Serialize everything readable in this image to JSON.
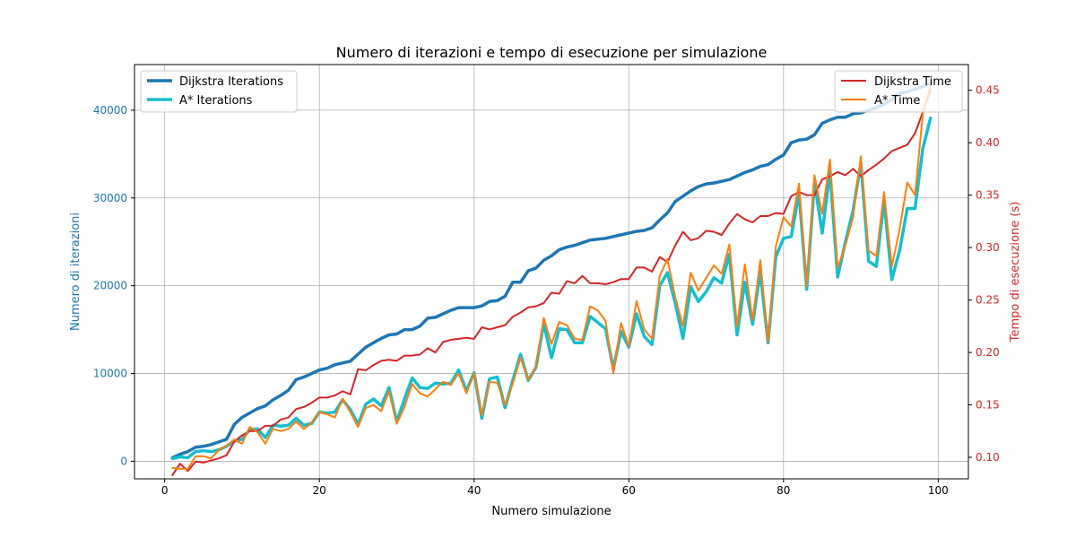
{
  "chart_data": {
    "type": "line",
    "title": "Numero di iterazioni e tempo di esecuzione per simulazione",
    "xlabel": "Numero simulazione",
    "ylabel_left": "Numero di iterazioni",
    "ylabel_right": "Tempo di esecuzione (s)",
    "xlim": [
      -3.9,
      103.9
    ],
    "ylim_left": [
      -2000,
      45200
    ],
    "ylim_right": [
      0.0795,
      0.4745
    ],
    "x_ticks": [
      0,
      20,
      40,
      60,
      80,
      100
    ],
    "y_left_ticks": [
      0,
      10000,
      20000,
      30000,
      40000
    ],
    "y_right_ticks": [
      0.1,
      0.15,
      0.2,
      0.25,
      0.3,
      0.35,
      0.4,
      0.45
    ],
    "grid": true,
    "legend_left": "top-left",
    "legend_right": "top-right",
    "colors": {
      "left_axis": "#1f77b4",
      "right_axis": "#d62728"
    },
    "series": [
      {
        "name": "Dijkstra Iterations",
        "axis": "left",
        "color": "#1f77b4",
        "x": [
          1,
          2,
          3,
          4,
          5,
          6,
          7,
          8,
          9,
          10,
          11,
          12,
          13,
          14,
          15,
          16,
          17,
          18,
          19,
          20,
          21,
          22,
          23,
          24,
          25,
          26,
          27,
          28,
          29,
          30,
          31,
          32,
          33,
          34,
          35,
          36,
          37,
          38,
          39,
          40,
          41,
          42,
          43,
          44,
          45,
          46,
          47,
          48,
          49,
          50,
          51,
          52,
          53,
          54,
          55,
          56,
          57,
          58,
          59,
          60,
          61,
          62,
          63,
          64,
          65,
          66,
          67,
          68,
          69,
          70,
          71,
          72,
          73,
          74,
          75,
          76,
          77,
          78,
          79,
          80,
          81,
          82,
          83,
          84,
          85,
          86,
          87,
          88,
          89,
          90,
          91,
          92,
          93,
          94,
          95,
          96,
          97,
          98,
          99
        ],
        "values": [
          400,
          800,
          1100,
          1600,
          1700,
          1900,
          2200,
          2500,
          4200,
          5000,
          5500,
          6000,
          6300,
          7000,
          7500,
          8100,
          9300,
          9600,
          10000,
          10400,
          10600,
          11000,
          11200,
          11400,
          12200,
          13000,
          13500,
          14000,
          14400,
          14500,
          15000,
          15000,
          15400,
          16300,
          16400,
          16800,
          17200,
          17500,
          17500,
          17500,
          17700,
          18200,
          18300,
          18800,
          20400,
          20400,
          21700,
          22000,
          22900,
          23400,
          24100,
          24400,
          24600,
          24900,
          25200,
          25300,
          25400,
          25600,
          25800,
          26000,
          26200,
          26300,
          26600,
          27500,
          28300,
          29600,
          30200,
          30800,
          31300,
          31600,
          31700,
          31900,
          32100,
          32500,
          32900,
          33200,
          33600,
          33800,
          34400,
          34900,
          36300,
          36600,
          36700,
          37200,
          38500,
          38900,
          39200,
          39200,
          39600,
          39700,
          40000,
          40300,
          40700,
          41200,
          41900,
          42100,
          42400,
          42700,
          43000
        ]
      },
      {
        "name": "A* Iterations",
        "axis": "left",
        "color": "#17becf",
        "x": [
          1,
          2,
          3,
          4,
          5,
          6,
          7,
          8,
          9,
          10,
          11,
          12,
          13,
          14,
          15,
          16,
          17,
          18,
          19,
          20,
          21,
          22,
          23,
          24,
          25,
          26,
          27,
          28,
          29,
          30,
          31,
          32,
          33,
          34,
          35,
          36,
          37,
          38,
          39,
          40,
          41,
          42,
          43,
          44,
          45,
          46,
          47,
          48,
          49,
          50,
          51,
          52,
          53,
          54,
          55,
          56,
          57,
          58,
          59,
          60,
          61,
          62,
          63,
          64,
          65,
          66,
          67,
          68,
          69,
          70,
          71,
          72,
          73,
          74,
          75,
          76,
          77,
          78,
          79,
          80,
          81,
          82,
          83,
          84,
          85,
          86,
          87,
          88,
          89,
          90,
          91,
          92,
          93,
          94,
          95,
          96,
          97,
          98,
          99
        ],
        "values": [
          300,
          500,
          400,
          1100,
          1200,
          1100,
          1300,
          1700,
          2300,
          2500,
          3600,
          3700,
          2700,
          4100,
          4000,
          4100,
          4900,
          4100,
          4300,
          5600,
          5500,
          5600,
          7000,
          5900,
          4200,
          6500,
          7100,
          6300,
          8400,
          4500,
          7100,
          9500,
          8400,
          8300,
          8900,
          8800,
          8900,
          10400,
          8000,
          10100,
          4900,
          9400,
          9600,
          6100,
          9200,
          12200,
          9200,
          10700,
          15700,
          11800,
          15100,
          15000,
          13500,
          13500,
          16500,
          15800,
          15100,
          10500,
          14800,
          13000,
          16800,
          14200,
          13300,
          20000,
          21500,
          18000,
          14000,
          19900,
          18200,
          19300,
          20900,
          20300,
          23600,
          14400,
          20400,
          15600,
          21600,
          13500,
          23300,
          25400,
          25600,
          30600,
          19600,
          31800,
          26000,
          33000,
          21000,
          25000,
          28600,
          34000,
          22800,
          22200,
          29700,
          20700,
          24000,
          28800,
          28800,
          35600,
          39100
        ]
      },
      {
        "name": "Dijkstra Time",
        "axis": "right",
        "color": "#d62728",
        "x": [
          1,
          2,
          3,
          4,
          5,
          6,
          7,
          8,
          9,
          10,
          11,
          12,
          13,
          14,
          15,
          16,
          17,
          18,
          19,
          20,
          21,
          22,
          23,
          24,
          25,
          26,
          27,
          28,
          29,
          30,
          31,
          32,
          33,
          34,
          35,
          36,
          37,
          38,
          39,
          40,
          41,
          42,
          43,
          44,
          45,
          46,
          47,
          48,
          49,
          50,
          51,
          52,
          53,
          54,
          55,
          56,
          57,
          58,
          59,
          60,
          61,
          62,
          63,
          64,
          65,
          66,
          67,
          68,
          69,
          70,
          71,
          72,
          73,
          74,
          75,
          76,
          77,
          78,
          79,
          80,
          81,
          82,
          83,
          84,
          85,
          86,
          87,
          88,
          89,
          90,
          91,
          92,
          93,
          94,
          95,
          96,
          97,
          98,
          99
        ],
        "values": [
          0.083,
          0.094,
          0.087,
          0.096,
          0.095,
          0.097,
          0.099,
          0.102,
          0.115,
          0.121,
          0.125,
          0.125,
          0.13,
          0.13,
          0.136,
          0.138,
          0.146,
          0.148,
          0.152,
          0.157,
          0.157,
          0.159,
          0.163,
          0.16,
          0.184,
          0.183,
          0.188,
          0.192,
          0.193,
          0.192,
          0.197,
          0.197,
          0.198,
          0.204,
          0.2,
          0.21,
          0.212,
          0.213,
          0.214,
          0.213,
          0.224,
          0.222,
          0.224,
          0.226,
          0.234,
          0.238,
          0.243,
          0.244,
          0.247,
          0.257,
          0.256,
          0.268,
          0.266,
          0.273,
          0.266,
          0.266,
          0.265,
          0.267,
          0.27,
          0.27,
          0.281,
          0.281,
          0.277,
          0.291,
          0.286,
          0.302,
          0.315,
          0.307,
          0.309,
          0.316,
          0.315,
          0.312,
          0.323,
          0.332,
          0.327,
          0.324,
          0.33,
          0.33,
          0.333,
          0.332,
          0.349,
          0.353,
          0.35,
          0.35,
          0.365,
          0.368,
          0.372,
          0.369,
          0.375,
          0.368,
          0.374,
          0.379,
          0.385,
          0.392,
          0.395,
          0.398,
          0.409,
          0.429,
          0.45
        ]
      },
      {
        "name": "A* Time",
        "axis": "right",
        "color": "#ff7f0e",
        "x": [
          1,
          2,
          3,
          4,
          5,
          6,
          7,
          8,
          9,
          10,
          11,
          12,
          13,
          14,
          15,
          16,
          17,
          18,
          19,
          20,
          21,
          22,
          23,
          24,
          25,
          26,
          27,
          28,
          29,
          30,
          31,
          32,
          33,
          34,
          35,
          36,
          37,
          38,
          39,
          40,
          41,
          42,
          43,
          44,
          45,
          46,
          47,
          48,
          49,
          50,
          51,
          52,
          53,
          54,
          55,
          56,
          57,
          58,
          59,
          60,
          61,
          62,
          63,
          64,
          65,
          66,
          67,
          68,
          69,
          70,
          71,
          72,
          73,
          74,
          75,
          76,
          77,
          78,
          79,
          80,
          81,
          82,
          83,
          84,
          85,
          86,
          87,
          88,
          89,
          90,
          91,
          92,
          93,
          94,
          95,
          96,
          97,
          98,
          99
        ],
        "values": [
          0.09,
          0.089,
          0.089,
          0.101,
          0.101,
          0.099,
          0.107,
          0.111,
          0.117,
          0.113,
          0.129,
          0.124,
          0.113,
          0.127,
          0.125,
          0.127,
          0.134,
          0.127,
          0.133,
          0.143,
          0.141,
          0.138,
          0.156,
          0.143,
          0.129,
          0.147,
          0.15,
          0.144,
          0.163,
          0.132,
          0.148,
          0.17,
          0.161,
          0.158,
          0.165,
          0.172,
          0.169,
          0.18,
          0.161,
          0.18,
          0.14,
          0.172,
          0.171,
          0.15,
          0.17,
          0.195,
          0.174,
          0.186,
          0.233,
          0.208,
          0.229,
          0.226,
          0.213,
          0.212,
          0.244,
          0.24,
          0.23,
          0.18,
          0.228,
          0.206,
          0.249,
          0.222,
          0.213,
          0.273,
          0.289,
          0.253,
          0.225,
          0.276,
          0.259,
          0.271,
          0.283,
          0.275,
          0.303,
          0.225,
          0.284,
          0.231,
          0.288,
          0.21,
          0.301,
          0.329,
          0.32,
          0.361,
          0.263,
          0.369,
          0.332,
          0.384,
          0.281,
          0.302,
          0.329,
          0.387,
          0.297,
          0.292,
          0.353,
          0.282,
          0.317,
          0.362,
          0.35,
          0.427,
          0.455
        ]
      }
    ]
  }
}
